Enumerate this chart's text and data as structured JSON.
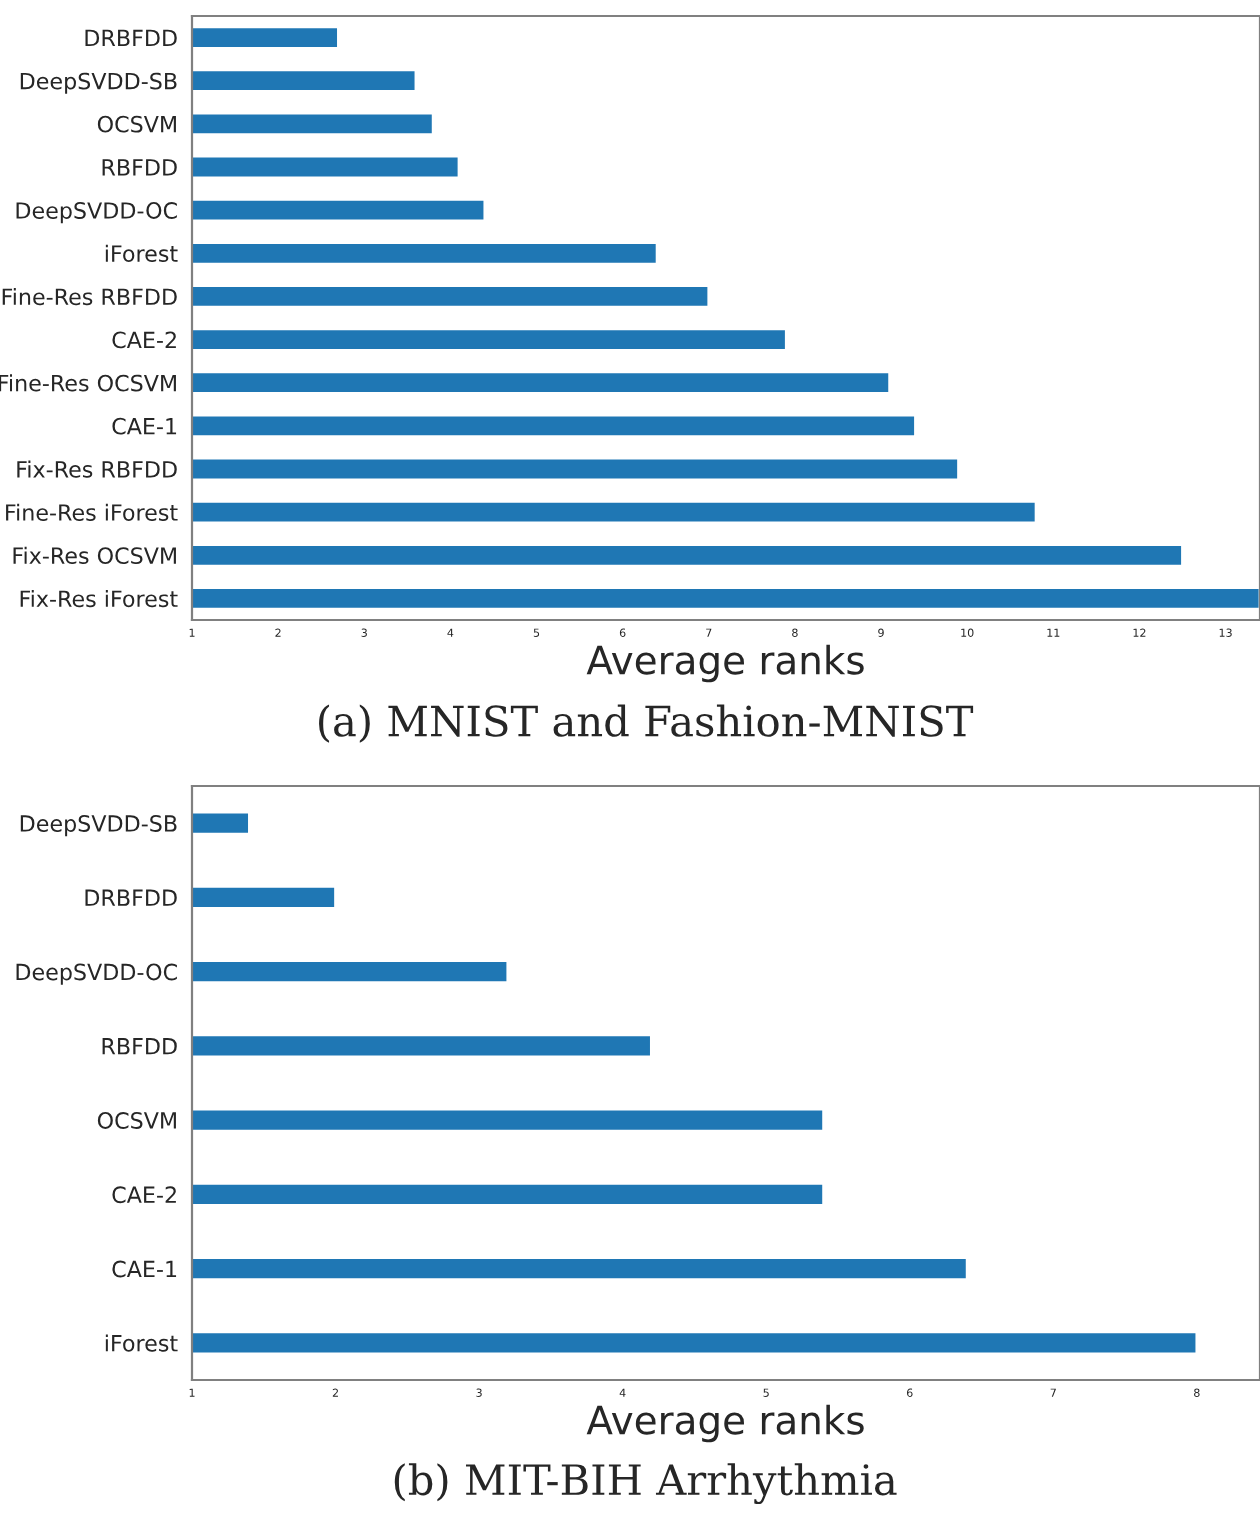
{
  "chart_data": [
    {
      "type": "bar",
      "orientation": "horizontal",
      "xlabel": "Average ranks",
      "annotations": [
        "(a) MNIST and Fashion-MNIST"
      ],
      "categories": [
        "DRBFDD",
        "DeepSVDD-SB",
        "OCSVM",
        "RBFDD",
        "DeepSVDD-OC",
        "iForest",
        "Fine-Res RBFDD",
        "CAE-2",
        "Fine-Res OCSVM",
        "CAE-1",
        "Fix-Res RBFDD",
        "Fine-Res iForest",
        "Fix-Res OCSVM",
        "Fix-Res iForest"
      ],
      "series": [
        {
          "color": "#1f77b4",
          "values": [
            2.7,
            3.6,
            3.8,
            4.1,
            4.4,
            6.4,
            7.0,
            7.9,
            9.1,
            9.4,
            9.9,
            10.8,
            12.5,
            13.4
          ]
        }
      ],
      "xlim": [
        1,
        13.4
      ],
      "xticks": [
        1,
        2,
        3,
        4,
        5,
        6,
        7,
        8,
        9,
        10,
        11,
        12,
        13
      ]
    },
    {
      "type": "bar",
      "orientation": "horizontal",
      "xlabel": "Average ranks",
      "annotations": [
        "(b) MIT-BIH Arrhythmia"
      ],
      "categories": [
        "DeepSVDD-SB",
        "DRBFDD",
        "DeepSVDD-OC",
        "RBFDD",
        "OCSVM",
        "CAE-2",
        "CAE-1",
        "iForest"
      ],
      "series": [
        {
          "color": "#1f77b4",
          "values": [
            1.4,
            2.0,
            3.2,
            4.2,
            5.4,
            5.4,
            6.4,
            8.0
          ]
        }
      ],
      "xlim": [
        1,
        8.44
      ],
      "xticks": [
        1,
        2,
        3,
        4,
        5,
        6,
        7,
        8
      ]
    }
  ]
}
